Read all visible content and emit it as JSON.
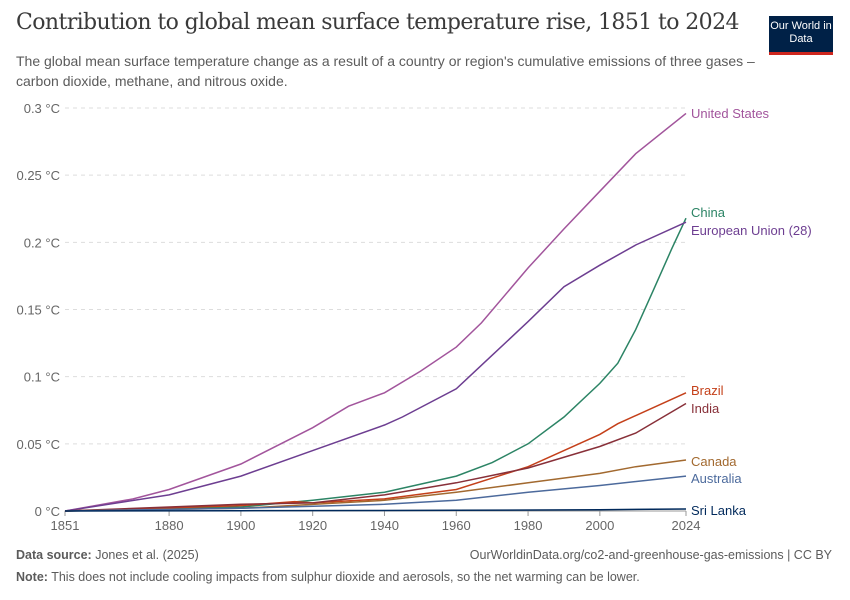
{
  "header": {
    "title": "Contribution to global mean surface temperature rise, 1851 to 2024",
    "subtitle": "The global mean surface temperature change as a result of a country or region's cumulative emissions of three gases – carbon dioxide, methane, and nitrous oxide.",
    "logo": "Our World in Data"
  },
  "footer": {
    "source_label": "Data source:",
    "source": "Jones et al. (2025)",
    "url": "OurWorldinData.org/co2-and-greenhouse-gas-emissions | CC BY",
    "note_label": "Note:",
    "note": "This does not include cooling impacts from sulphur dioxide and aerosols, so the net warming can be lower."
  },
  "chart_data": {
    "type": "line",
    "xlim": [
      1851,
      2024
    ],
    "ylim": [
      0,
      0.3
    ],
    "x_ticks": [
      1851,
      1880,
      1900,
      1920,
      1940,
      1960,
      1980,
      2000,
      2024
    ],
    "y_ticks": [
      0,
      0.05,
      0.1,
      0.15,
      0.2,
      0.25,
      0.3
    ],
    "y_tick_labels": [
      "0 °C",
      "0.05 °C",
      "0.1 °C",
      "0.15 °C",
      "0.2 °C",
      "0.25 °C",
      "0.3 °C"
    ],
    "grid": "horizontal dashed",
    "legend": "line-end labels",
    "series": [
      {
        "name": "United States",
        "color": "#a2559c",
        "points": [
          [
            1851,
            0
          ],
          [
            1870,
            0.009
          ],
          [
            1880,
            0.016
          ],
          [
            1900,
            0.035
          ],
          [
            1920,
            0.062
          ],
          [
            1930,
            0.078
          ],
          [
            1940,
            0.088
          ],
          [
            1950,
            0.104
          ],
          [
            1960,
            0.122
          ],
          [
            1967,
            0.14
          ],
          [
            1980,
            0.181
          ],
          [
            1990,
            0.21
          ],
          [
            2000,
            0.238
          ],
          [
            2010,
            0.266
          ],
          [
            2024,
            0.296
          ]
        ]
      },
      {
        "name": "China",
        "color": "#2c8465",
        "points": [
          [
            1851,
            0
          ],
          [
            1900,
            0.003
          ],
          [
            1920,
            0.008
          ],
          [
            1940,
            0.014
          ],
          [
            1960,
            0.026
          ],
          [
            1970,
            0.036
          ],
          [
            1980,
            0.05
          ],
          [
            1990,
            0.07
          ],
          [
            2000,
            0.095
          ],
          [
            2005,
            0.11
          ],
          [
            2010,
            0.135
          ],
          [
            2015,
            0.165
          ],
          [
            2020,
            0.195
          ],
          [
            2024,
            0.218
          ]
        ]
      },
      {
        "name": "European Union (28)",
        "color": "#6d3e91",
        "points": [
          [
            1851,
            0
          ],
          [
            1880,
            0.012
          ],
          [
            1900,
            0.026
          ],
          [
            1920,
            0.045
          ],
          [
            1940,
            0.064
          ],
          [
            1945,
            0.07
          ],
          [
            1960,
            0.091
          ],
          [
            1970,
            0.116
          ],
          [
            1980,
            0.141
          ],
          [
            1990,
            0.167
          ],
          [
            2000,
            0.183
          ],
          [
            2010,
            0.198
          ],
          [
            2024,
            0.215
          ]
        ]
      },
      {
        "name": "Brazil",
        "color": "#c4401a",
        "points": [
          [
            1851,
            0
          ],
          [
            1900,
            0.004
          ],
          [
            1915,
            0.007
          ],
          [
            1920,
            0.006
          ],
          [
            1940,
            0.009
          ],
          [
            1960,
            0.016
          ],
          [
            1980,
            0.033
          ],
          [
            2000,
            0.057
          ],
          [
            2005,
            0.065
          ],
          [
            2024,
            0.088
          ]
        ]
      },
      {
        "name": "India",
        "color": "#883039",
        "points": [
          [
            1851,
            0
          ],
          [
            1900,
            0.005
          ],
          [
            1920,
            0.006
          ],
          [
            1940,
            0.012
          ],
          [
            1960,
            0.021
          ],
          [
            1980,
            0.032
          ],
          [
            2000,
            0.048
          ],
          [
            2010,
            0.058
          ],
          [
            2024,
            0.08
          ]
        ]
      },
      {
        "name": "Canada",
        "color": "#a2692f",
        "points": [
          [
            1851,
            0
          ],
          [
            1900,
            0.002
          ],
          [
            1940,
            0.008
          ],
          [
            1960,
            0.014
          ],
          [
            1980,
            0.021
          ],
          [
            2000,
            0.028
          ],
          [
            2010,
            0.033
          ],
          [
            2024,
            0.038
          ]
        ]
      },
      {
        "name": "Australia",
        "color": "#4c6a9c",
        "points": [
          [
            1851,
            0
          ],
          [
            1900,
            0.002
          ],
          [
            1940,
            0.005
          ],
          [
            1960,
            0.008
          ],
          [
            1980,
            0.014
          ],
          [
            2000,
            0.019
          ],
          [
            2024,
            0.026
          ]
        ]
      },
      {
        "name": "Sri Lanka",
        "color": "#00295b",
        "points": [
          [
            1851,
            0
          ],
          [
            1900,
            0.0002
          ],
          [
            1960,
            0.0005
          ],
          [
            2000,
            0.001
          ],
          [
            2024,
            0.0015
          ]
        ]
      }
    ]
  }
}
